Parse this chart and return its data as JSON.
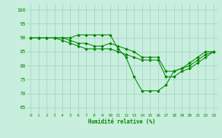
{
  "xlabel": "Humidité relative (%)",
  "xlim": [
    -0.5,
    23.5
  ],
  "ylim": [
    63,
    102
  ],
  "yticks": [
    65,
    70,
    75,
    80,
    85,
    90,
    95,
    100
  ],
  "xticks": [
    0,
    1,
    2,
    3,
    4,
    5,
    6,
    7,
    8,
    9,
    10,
    11,
    12,
    13,
    14,
    15,
    16,
    17,
    18,
    19,
    20,
    21,
    22,
    23
  ],
  "bg_color": "#c8eedd",
  "grid_color": "#a8d8c8",
  "line_color": "#008800",
  "line1": [
    90,
    90,
    90,
    90,
    90,
    90,
    91,
    91,
    91,
    91,
    91,
    86,
    83,
    76,
    71,
    71,
    71,
    73,
    78,
    79,
    81,
    83,
    85,
    85
  ],
  "line2": [
    90,
    90,
    90,
    90,
    90,
    89,
    88,
    88,
    87,
    87,
    88,
    87,
    86,
    85,
    83,
    83,
    83,
    78,
    78,
    79,
    80,
    82,
    84,
    85
  ],
  "line3": [
    90,
    90,
    90,
    90,
    89,
    88,
    87,
    86,
    86,
    86,
    86,
    85,
    84,
    83,
    82,
    82,
    82,
    76,
    76,
    78,
    79,
    81,
    83,
    85
  ]
}
